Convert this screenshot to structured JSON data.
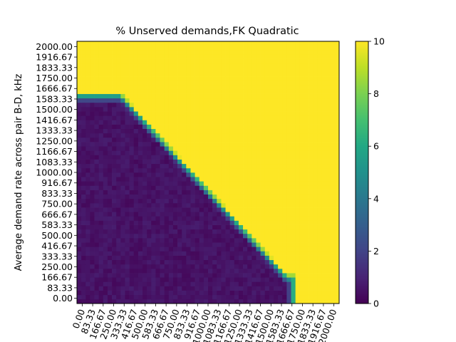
{
  "chart_data": {
    "type": "heatmap",
    "title": "% Unserved demands,FK Quadratic",
    "ylabel": "Average demand rate across pair B-D, kHz",
    "xlabel": "",
    "x_tick_labels": [
      "0.00",
      "83.33",
      "166.67",
      "250.00",
      "333.33",
      "416.67",
      "500.00",
      "583.33",
      "666.67",
      "750.00",
      "833.33",
      "916.67",
      "1000.00",
      "1083.33",
      "1166.67",
      "1250.00",
      "1333.33",
      "1416.67",
      "1500.00",
      "1583.33",
      "1666.67",
      "1750.00",
      "1833.33",
      "1916.67",
      "2000.00"
    ],
    "y_tick_labels": [
      "0.00",
      "83.33",
      "166.67",
      "250.00",
      "333.33",
      "416.67",
      "500.00",
      "583.33",
      "666.67",
      "750.00",
      "833.33",
      "916.67",
      "1000.00",
      "1083.33",
      "1166.67",
      "1250.00",
      "1333.33",
      "1416.67",
      "1500.00",
      "1583.33",
      "1666.67",
      "1750.00",
      "1833.33",
      "1916.67",
      "2000.00"
    ],
    "xlim": [
      0,
      2000
    ],
    "ylim": [
      0,
      2000
    ],
    "grid": 60,
    "colorbar": {
      "vmin": 0,
      "vmax": 10,
      "ticks": [
        "0",
        "2",
        "4",
        "6",
        "8",
        "10"
      ]
    },
    "colormap": "viridis",
    "description_of_field": {
      "low_region_value": 0.2,
      "high_region_value": 10,
      "top_plateau_y": 1600,
      "top_plateau_x_end": 330,
      "diagonal": {
        "x_start": 330,
        "y_start": 1600,
        "x_end": 1600,
        "y_end": 210
      },
      "right_cutoff_x": 1660,
      "transition_width": 70
    }
  }
}
